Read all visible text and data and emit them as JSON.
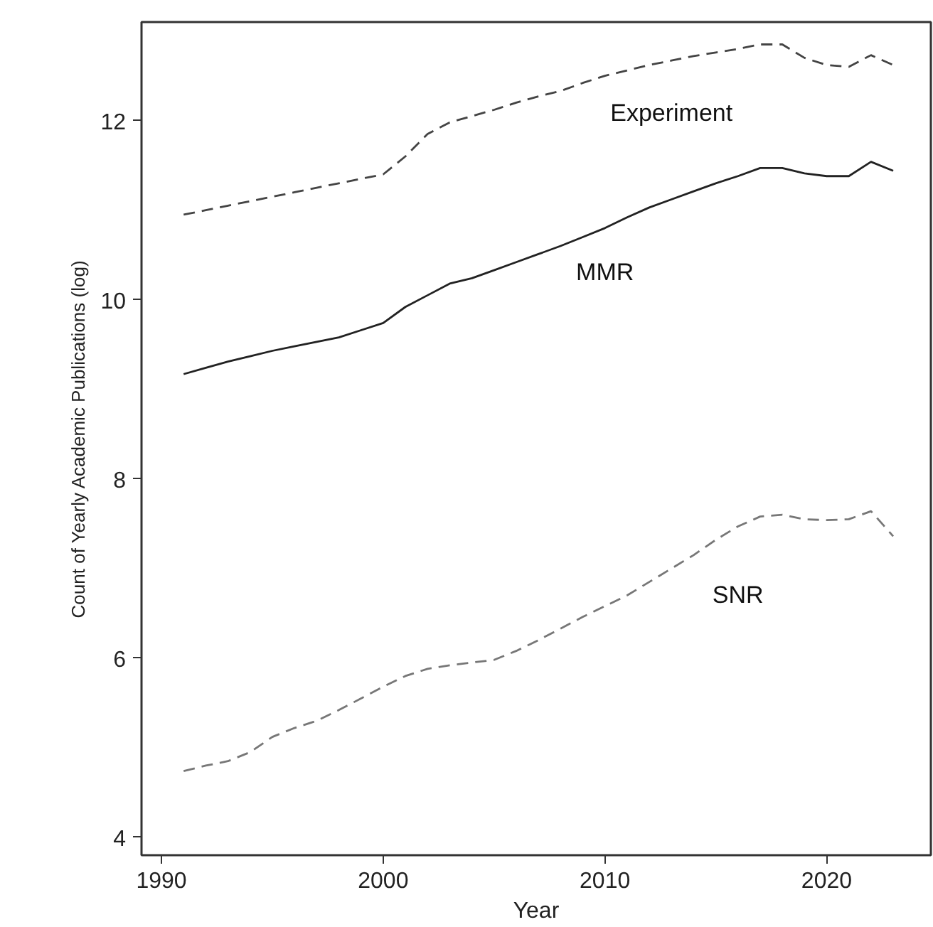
{
  "chart_data": {
    "type": "line",
    "xlabel": "Year",
    "ylabel": "Count of Yearly Academic Publications (log)",
    "x": [
      1991,
      1992,
      1993,
      1994,
      1995,
      1996,
      1997,
      1998,
      1999,
      2000,
      2001,
      2002,
      2003,
      2004,
      2005,
      2006,
      2007,
      2008,
      2009,
      2010,
      2011,
      2012,
      2013,
      2014,
      2015,
      2016,
      2017,
      2018,
      2019,
      2020,
      2021,
      2022,
      2023
    ],
    "series": [
      {
        "name": "Experiment",
        "color": "#444444",
        "line_style": "dashed",
        "values": [
          10.95,
          11.0,
          11.05,
          11.1,
          11.15,
          11.2,
          11.25,
          11.3,
          11.35,
          11.4,
          11.6,
          11.85,
          11.98,
          12.05,
          12.12,
          12.2,
          12.27,
          12.33,
          12.42,
          12.5,
          12.56,
          12.62,
          12.67,
          12.72,
          12.76,
          12.8,
          12.85,
          12.85,
          12.7,
          12.62,
          12.6,
          12.73,
          12.62
        ]
      },
      {
        "name": "MMR",
        "color": "#222222",
        "line_style": "solid",
        "values": [
          9.17,
          9.24,
          9.31,
          9.37,
          9.43,
          9.48,
          9.53,
          9.58,
          9.66,
          9.74,
          9.92,
          10.05,
          10.18,
          10.24,
          10.33,
          10.42,
          10.51,
          10.6,
          10.7,
          10.8,
          10.92,
          11.03,
          11.12,
          11.21,
          11.3,
          11.38,
          11.47,
          11.47,
          11.41,
          11.38,
          11.38,
          11.54,
          11.44
        ]
      },
      {
        "name": "SNR",
        "color": "#777777",
        "line_style": "dashed",
        "values": [
          4.74,
          4.8,
          4.85,
          4.95,
          5.12,
          5.22,
          5.3,
          5.42,
          5.55,
          5.68,
          5.8,
          5.88,
          5.92,
          5.95,
          5.98,
          6.08,
          6.2,
          6.33,
          6.46,
          6.58,
          6.7,
          6.85,
          7.0,
          7.15,
          7.32,
          7.47,
          7.58,
          7.6,
          7.55,
          7.54,
          7.55,
          7.64,
          7.36
        ]
      }
    ],
    "xlim": [
      1989.1,
      2024.7
    ],
    "xticks": [
      1990,
      2000,
      2010,
      2020
    ],
    "ylim": [
      3.8,
      13.1
    ],
    "yticks": [
      4,
      6,
      8,
      10,
      12
    ],
    "grid": false,
    "legend": false
  }
}
